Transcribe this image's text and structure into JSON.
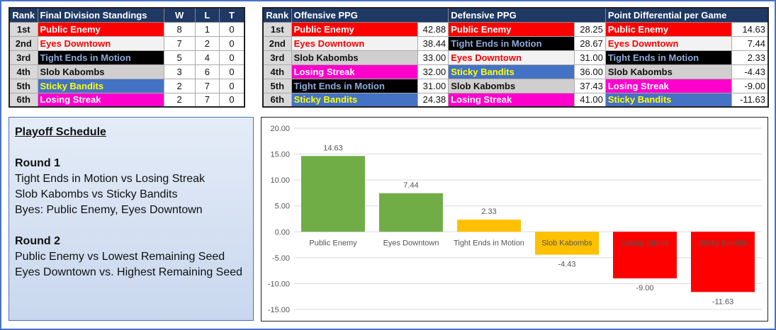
{
  "standings": {
    "headers": [
      "Rank",
      "Final Division Standings",
      "W",
      "L",
      "T"
    ],
    "rows": [
      {
        "rank": "1st",
        "team": "Public Enemy",
        "w": "8",
        "l": "1",
        "t": "0",
        "bg": "#ff0000",
        "fg": "#ffffff"
      },
      {
        "rank": "2nd",
        "team": "Eyes Downtown",
        "w": "7",
        "l": "2",
        "t": "0",
        "bg": "#f2f2f2",
        "fg": "#ff0000"
      },
      {
        "rank": "3rd",
        "team": "Tight Ends in Motion",
        "w": "5",
        "l": "4",
        "t": "0",
        "bg": "#000000",
        "fg": "#8eaadb"
      },
      {
        "rank": "4th",
        "team": "Slob Kabombs",
        "w": "3",
        "l": "6",
        "t": "0",
        "bg": "#d0cece",
        "fg": "#111111"
      },
      {
        "rank": "5th",
        "team": "Sticky Bandits",
        "w": "2",
        "l": "7",
        "t": "0",
        "bg": "#4472c4",
        "fg": "#ffff00"
      },
      {
        "rank": "6th",
        "team": "Losing Streak",
        "w": "2",
        "l": "7",
        "t": "0",
        "bg": "#ff00cc",
        "fg": "#ffffff"
      }
    ]
  },
  "stats": {
    "headers": [
      "Rank",
      "Offensive PPG",
      "Defensive PPG",
      "Point Differential per Game"
    ],
    "rows": [
      {
        "rank": "1st",
        "off": {
          "team": "Public Enemy",
          "val": "42.88",
          "bg": "#ff0000",
          "fg": "#ffffff"
        },
        "def": {
          "team": "Public Enemy",
          "val": "28.25",
          "bg": "#ff0000",
          "fg": "#ffffff"
        },
        "diff": {
          "team": "Public Enemy",
          "val": "14.63",
          "bg": "#ff0000",
          "fg": "#ffffff"
        }
      },
      {
        "rank": "2nd",
        "off": {
          "team": "Eyes Downtown",
          "val": "38.44",
          "bg": "#f2f2f2",
          "fg": "#ff0000"
        },
        "def": {
          "team": "Tight Ends in Motion",
          "val": "28.67",
          "bg": "#000000",
          "fg": "#8eaadb"
        },
        "diff": {
          "team": "Eyes Downtown",
          "val": "7.44",
          "bg": "#f2f2f2",
          "fg": "#ff0000"
        }
      },
      {
        "rank": "3rd",
        "off": {
          "team": "Slob Kabombs",
          "val": "33.00",
          "bg": "#d0cece",
          "fg": "#111111"
        },
        "def": {
          "team": "Eyes Downtown",
          "val": "31.00",
          "bg": "#f2f2f2",
          "fg": "#ff0000"
        },
        "diff": {
          "team": "Tight Ends in Motion",
          "val": "2.33",
          "bg": "#000000",
          "fg": "#8eaadb"
        }
      },
      {
        "rank": "4th",
        "off": {
          "team": "Losing Streak",
          "val": "32.00",
          "bg": "#ff00cc",
          "fg": "#ffffff"
        },
        "def": {
          "team": "Sticky Bandits",
          "val": "36.00",
          "bg": "#4472c4",
          "fg": "#ffff00"
        },
        "diff": {
          "team": "Slob Kabombs",
          "val": "-4.43",
          "bg": "#d0cece",
          "fg": "#111111"
        }
      },
      {
        "rank": "5th",
        "off": {
          "team": "Tight Ends in Motion",
          "val": "31.00",
          "bg": "#000000",
          "fg": "#8eaadb"
        },
        "def": {
          "team": "Slob Kabombs",
          "val": "37.43",
          "bg": "#d0cece",
          "fg": "#111111"
        },
        "diff": {
          "team": "Losing Streak",
          "val": "-9.00",
          "bg": "#ff00cc",
          "fg": "#ffffff"
        }
      },
      {
        "rank": "6th",
        "off": {
          "team": "Sticky Bandits",
          "val": "24.38",
          "bg": "#4472c4",
          "fg": "#ffff00"
        },
        "def": {
          "team": "Losing Streak",
          "val": "41.00",
          "bg": "#ff00cc",
          "fg": "#ffffff"
        },
        "diff": {
          "team": "Sticky Bandits",
          "val": "-11.63",
          "bg": "#4472c4",
          "fg": "#ffff00"
        }
      }
    ]
  },
  "playoff": {
    "title": "Playoff Schedule",
    "round1": "Round 1",
    "r1_lines": [
      "Tight Ends in Motion vs Losing Streak",
      "Slob Kabombs vs Sticky Bandits",
      "Byes: Public Enemy, Eyes Downtown"
    ],
    "round2": "Round 2",
    "r2_lines": [
      "Public Enemy vs Lowest Remaining Seed",
      "Eyes Downtown vs. Highest Remaining Seed"
    ]
  },
  "chart_data": {
    "type": "bar",
    "title": "",
    "categories": [
      "Public Enemy",
      "Eyes Downtown",
      "Tight Ends in Motion",
      "Slob Kabombs",
      "Losing Streak",
      "Sticky Bandits"
    ],
    "values": [
      14.63,
      7.44,
      2.33,
      -4.43,
      -9.0,
      -11.63
    ],
    "value_labels": [
      "14.63",
      "7.44",
      "2.33",
      "-4.43",
      "-9.00",
      "-11.63"
    ],
    "colors": [
      "#70ad47",
      "#70ad47",
      "#ffc000",
      "#ffc000",
      "#ff0000",
      "#ff0000"
    ],
    "ylim": [
      -15,
      20
    ],
    "yticks": [
      "20.00",
      "15.00",
      "10.00",
      "5.00",
      "0.00",
      "-5.00",
      "-10.00",
      "-15.00"
    ],
    "grid": true
  }
}
